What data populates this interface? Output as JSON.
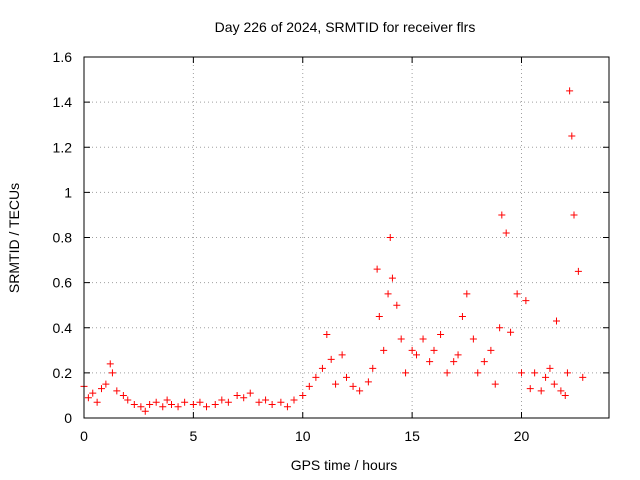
{
  "chart_data": {
    "type": "scatter",
    "title": "Day 226 of 2024, SRMTID for receiver flrs",
    "xlabel": "GPS time / hours",
    "ylabel": "SRMTID / TECUs",
    "xlim": [
      0,
      24
    ],
    "ylim": [
      0,
      1.6
    ],
    "xticks": [
      0,
      5,
      10,
      15,
      20
    ],
    "xtick_labels": [
      "0",
      "5",
      "10",
      "15",
      "20"
    ],
    "yticks": [
      0,
      0.2,
      0.4,
      0.6,
      0.8,
      1,
      1.2,
      1.4,
      1.6
    ],
    "ytick_labels": [
      "0",
      "0.2",
      "0.4",
      "0.6",
      "0.8",
      "1",
      "1.2",
      "1.4",
      "1.6"
    ],
    "grid": true,
    "marker": "+",
    "color": "#ff0000",
    "series": [
      {
        "name": "flrs",
        "x": [
          0.0,
          0.2,
          0.4,
          0.6,
          0.8,
          1.0,
          1.2,
          1.3,
          1.5,
          1.8,
          2.0,
          2.3,
          2.6,
          2.8,
          3.0,
          3.3,
          3.6,
          3.8,
          4.0,
          4.3,
          4.6,
          5.0,
          5.3,
          5.6,
          6.0,
          6.3,
          6.6,
          7.0,
          7.3,
          7.6,
          8.0,
          8.3,
          8.6,
          9.0,
          9.3,
          9.6,
          10.0,
          10.3,
          10.6,
          10.9,
          11.1,
          11.3,
          11.5,
          11.8,
          12.0,
          12.3,
          12.6,
          13.0,
          13.2,
          13.4,
          13.5,
          13.7,
          13.9,
          14.0,
          14.1,
          14.3,
          14.5,
          14.7,
          15.0,
          15.2,
          15.5,
          15.8,
          16.0,
          16.3,
          16.6,
          16.9,
          17.1,
          17.3,
          17.5,
          17.8,
          18.0,
          18.3,
          18.6,
          18.8,
          19.0,
          19.1,
          19.3,
          19.5,
          19.8,
          20.0,
          20.2,
          20.4,
          20.6,
          20.9,
          21.1,
          21.3,
          21.5,
          21.6,
          21.8,
          22.0,
          22.1,
          22.2,
          22.3,
          22.4,
          22.6,
          22.8
        ],
        "values": [
          0.14,
          0.09,
          0.11,
          0.07,
          0.13,
          0.15,
          0.24,
          0.2,
          0.12,
          0.1,
          0.08,
          0.06,
          0.05,
          0.03,
          0.06,
          0.07,
          0.05,
          0.08,
          0.06,
          0.05,
          0.07,
          0.06,
          0.07,
          0.05,
          0.06,
          0.08,
          0.07,
          0.1,
          0.09,
          0.11,
          0.07,
          0.08,
          0.06,
          0.07,
          0.05,
          0.08,
          0.1,
          0.14,
          0.18,
          0.22,
          0.37,
          0.26,
          0.15,
          0.28,
          0.18,
          0.14,
          0.12,
          0.16,
          0.22,
          0.66,
          0.45,
          0.3,
          0.55,
          0.8,
          0.62,
          0.5,
          0.35,
          0.2,
          0.3,
          0.28,
          0.35,
          0.25,
          0.3,
          0.37,
          0.2,
          0.25,
          0.28,
          0.45,
          0.55,
          0.35,
          0.2,
          0.25,
          0.3,
          0.15,
          0.4,
          0.9,
          0.82,
          0.38,
          0.55,
          0.2,
          0.52,
          0.13,
          0.2,
          0.12,
          0.18,
          0.22,
          0.15,
          0.43,
          0.12,
          0.1,
          0.2,
          1.45,
          1.25,
          0.9,
          0.65,
          0.18
        ]
      }
    ]
  }
}
